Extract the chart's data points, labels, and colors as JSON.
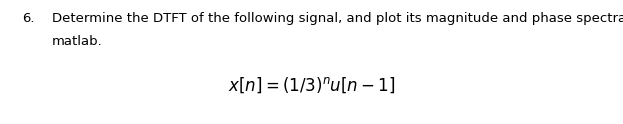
{
  "background_color": "#ffffff",
  "number": "6.",
  "main_text_line1": "Determine the DTFT of the following signal, and plot its magnitude and phase spectra using",
  "main_text_line2": "matlab.",
  "font_size_main": 9.5,
  "font_size_formula": 12,
  "fig_width": 6.23,
  "fig_height": 1.24,
  "dpi": 100
}
